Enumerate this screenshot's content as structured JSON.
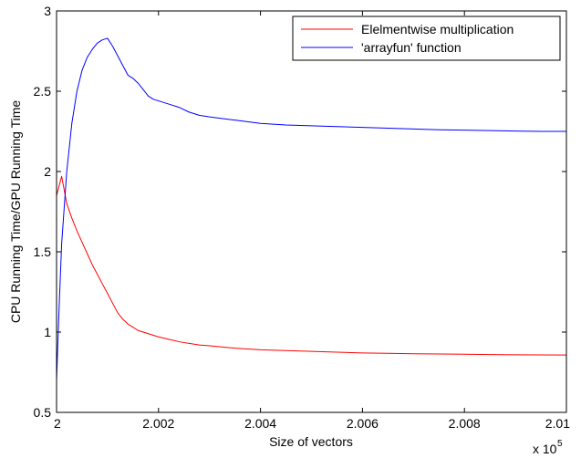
{
  "chart_data": {
    "type": "line",
    "title": "",
    "xlabel": "Size of vectors",
    "ylabel": "CPU Running Time/GPU Running Time",
    "x_multiplier_label": "x 10",
    "x_multiplier_exponent": "5",
    "xlim": [
      2,
      2.01
    ],
    "ylim": [
      0.5,
      3
    ],
    "xticks": [
      2,
      2.002,
      2.004,
      2.006,
      2.008,
      2.01
    ],
    "xtick_labels": [
      "2",
      "2.002",
      "2.004",
      "2.006",
      "2.008",
      "2.01"
    ],
    "yticks": [
      0.5,
      1,
      1.5,
      2,
      2.5,
      3
    ],
    "ytick_labels": [
      "0.5",
      "1",
      "1.5",
      "2",
      "2.5",
      "3"
    ],
    "grid": false,
    "legend_position": "top-right",
    "series": [
      {
        "name": "Elelmentwise multiplication",
        "color": "#ff0000",
        "x": [
          2,
          2.0001,
          2.0002,
          2.0003,
          2.0004,
          2.0005,
          2.0006,
          2.0007,
          2.0008,
          2.0009,
          2.001,
          2.0011,
          2.0012,
          2.0013,
          2.0014,
          2.0015,
          2.0016,
          2.0018,
          2.002,
          2.0022,
          2.0024,
          2.0026,
          2.0028,
          2.003,
          2.0035,
          2.004,
          2.0045,
          2.005,
          2.0055,
          2.006,
          2.0065,
          2.007,
          2.0075,
          2.008,
          2.0085,
          2.009,
          2.0095,
          2.01
        ],
        "y": [
          1.85,
          1.97,
          1.8,
          1.71,
          1.63,
          1.56,
          1.49,
          1.42,
          1.36,
          1.3,
          1.24,
          1.18,
          1.12,
          1.08,
          1.05,
          1.03,
          1.01,
          0.99,
          0.97,
          0.955,
          0.94,
          0.93,
          0.92,
          0.915,
          0.9,
          0.89,
          0.885,
          0.88,
          0.875,
          0.87,
          0.868,
          0.865,
          0.864,
          0.862,
          0.86,
          0.859,
          0.858,
          0.857
        ]
      },
      {
        "name": "'arrayfun' function",
        "color": "#0000ff",
        "x": [
          2,
          2.00005,
          2.0001,
          2.0002,
          2.0003,
          2.0004,
          2.0005,
          2.0006,
          2.0007,
          2.0008,
          2.0009,
          2.001,
          2.0011,
          2.0012,
          2.0013,
          2.0014,
          2.0015,
          2.0016,
          2.0017,
          2.0018,
          2.0019,
          2.002,
          2.0022,
          2.0024,
          2.0026,
          2.0028,
          2.003,
          2.0035,
          2.004,
          2.0045,
          2.005,
          2.0055,
          2.006,
          2.0065,
          2.007,
          2.0075,
          2.008,
          2.0085,
          2.009,
          2.0095,
          2.01
        ],
        "y": [
          0.7,
          1.15,
          1.55,
          2.0,
          2.3,
          2.5,
          2.63,
          2.71,
          2.76,
          2.8,
          2.82,
          2.83,
          2.78,
          2.72,
          2.66,
          2.6,
          2.58,
          2.55,
          2.51,
          2.47,
          2.45,
          2.44,
          2.42,
          2.4,
          2.37,
          2.35,
          2.34,
          2.32,
          2.3,
          2.29,
          2.285,
          2.28,
          2.275,
          2.27,
          2.265,
          2.26,
          2.258,
          2.255,
          2.252,
          2.25,
          2.25
        ]
      }
    ]
  }
}
